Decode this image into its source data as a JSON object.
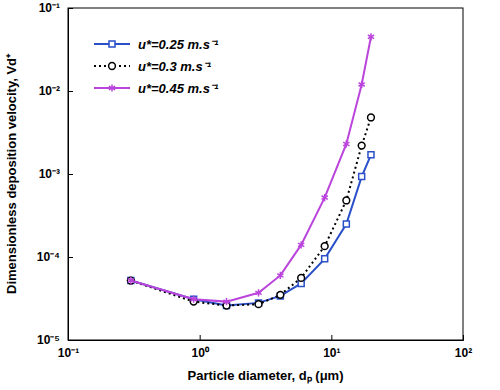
{
  "chart_data": {
    "type": "line",
    "x_label": "Particle diameter, dₚ (μm)",
    "y_label": "Dimensionless deposition velocity, Vd⁺",
    "log": true,
    "legend": "top-left",
    "xlim": [
      0.1,
      100
    ],
    "ylim": [
      1e-05,
      0.1
    ],
    "xticks": [
      {
        "value": 0.1,
        "label": "10⁻¹"
      },
      {
        "value": 1,
        "label": "10⁰"
      },
      {
        "value": 10,
        "label": "10¹"
      },
      {
        "value": 100,
        "label": "10²"
      }
    ],
    "yticks": [
      {
        "value": 1e-05,
        "label": "10⁻⁵"
      },
      {
        "value": 0.0001,
        "label": "10⁻⁴"
      },
      {
        "value": 0.001,
        "label": "10⁻³"
      },
      {
        "value": 0.01,
        "label": "10⁻²"
      },
      {
        "value": 0.1,
        "label": "10⁻¹"
      }
    ],
    "x": [
      0.3,
      0.9,
      1.6,
      2.8,
      4.1,
      5.9,
      8.9,
      13,
      17,
      20
    ],
    "series": [
      {
        "name": "u*=0.25 m.s⁻¹",
        "color": "#2a4fc9",
        "marker": "square",
        "line_style": "solid",
        "values": [
          5.2e-05,
          3.1e-05,
          2.6e-05,
          2.8e-05,
          3.4e-05,
          4.8e-05,
          9.5e-05,
          0.00025,
          0.00093,
          0.0017
        ]
      },
      {
        "name": "u*=0.3 m.s⁻¹",
        "color": "#000000",
        "marker": "circle",
        "line_style": "dotted",
        "values": [
          5.2e-05,
          2.9e-05,
          2.6e-05,
          2.7e-05,
          3.5e-05,
          5.6e-05,
          0.000135,
          0.00048,
          0.0022,
          0.0048
        ]
      },
      {
        "name": "u*=0.45 m.s⁻¹",
        "color": "#bb44dd",
        "marker": "asterisk",
        "line_style": "solid",
        "values": [
          5.2e-05,
          3.1e-05,
          2.9e-05,
          3.7e-05,
          6e-05,
          0.00014,
          0.00052,
          0.0023,
          0.012,
          0.045
        ]
      }
    ]
  }
}
